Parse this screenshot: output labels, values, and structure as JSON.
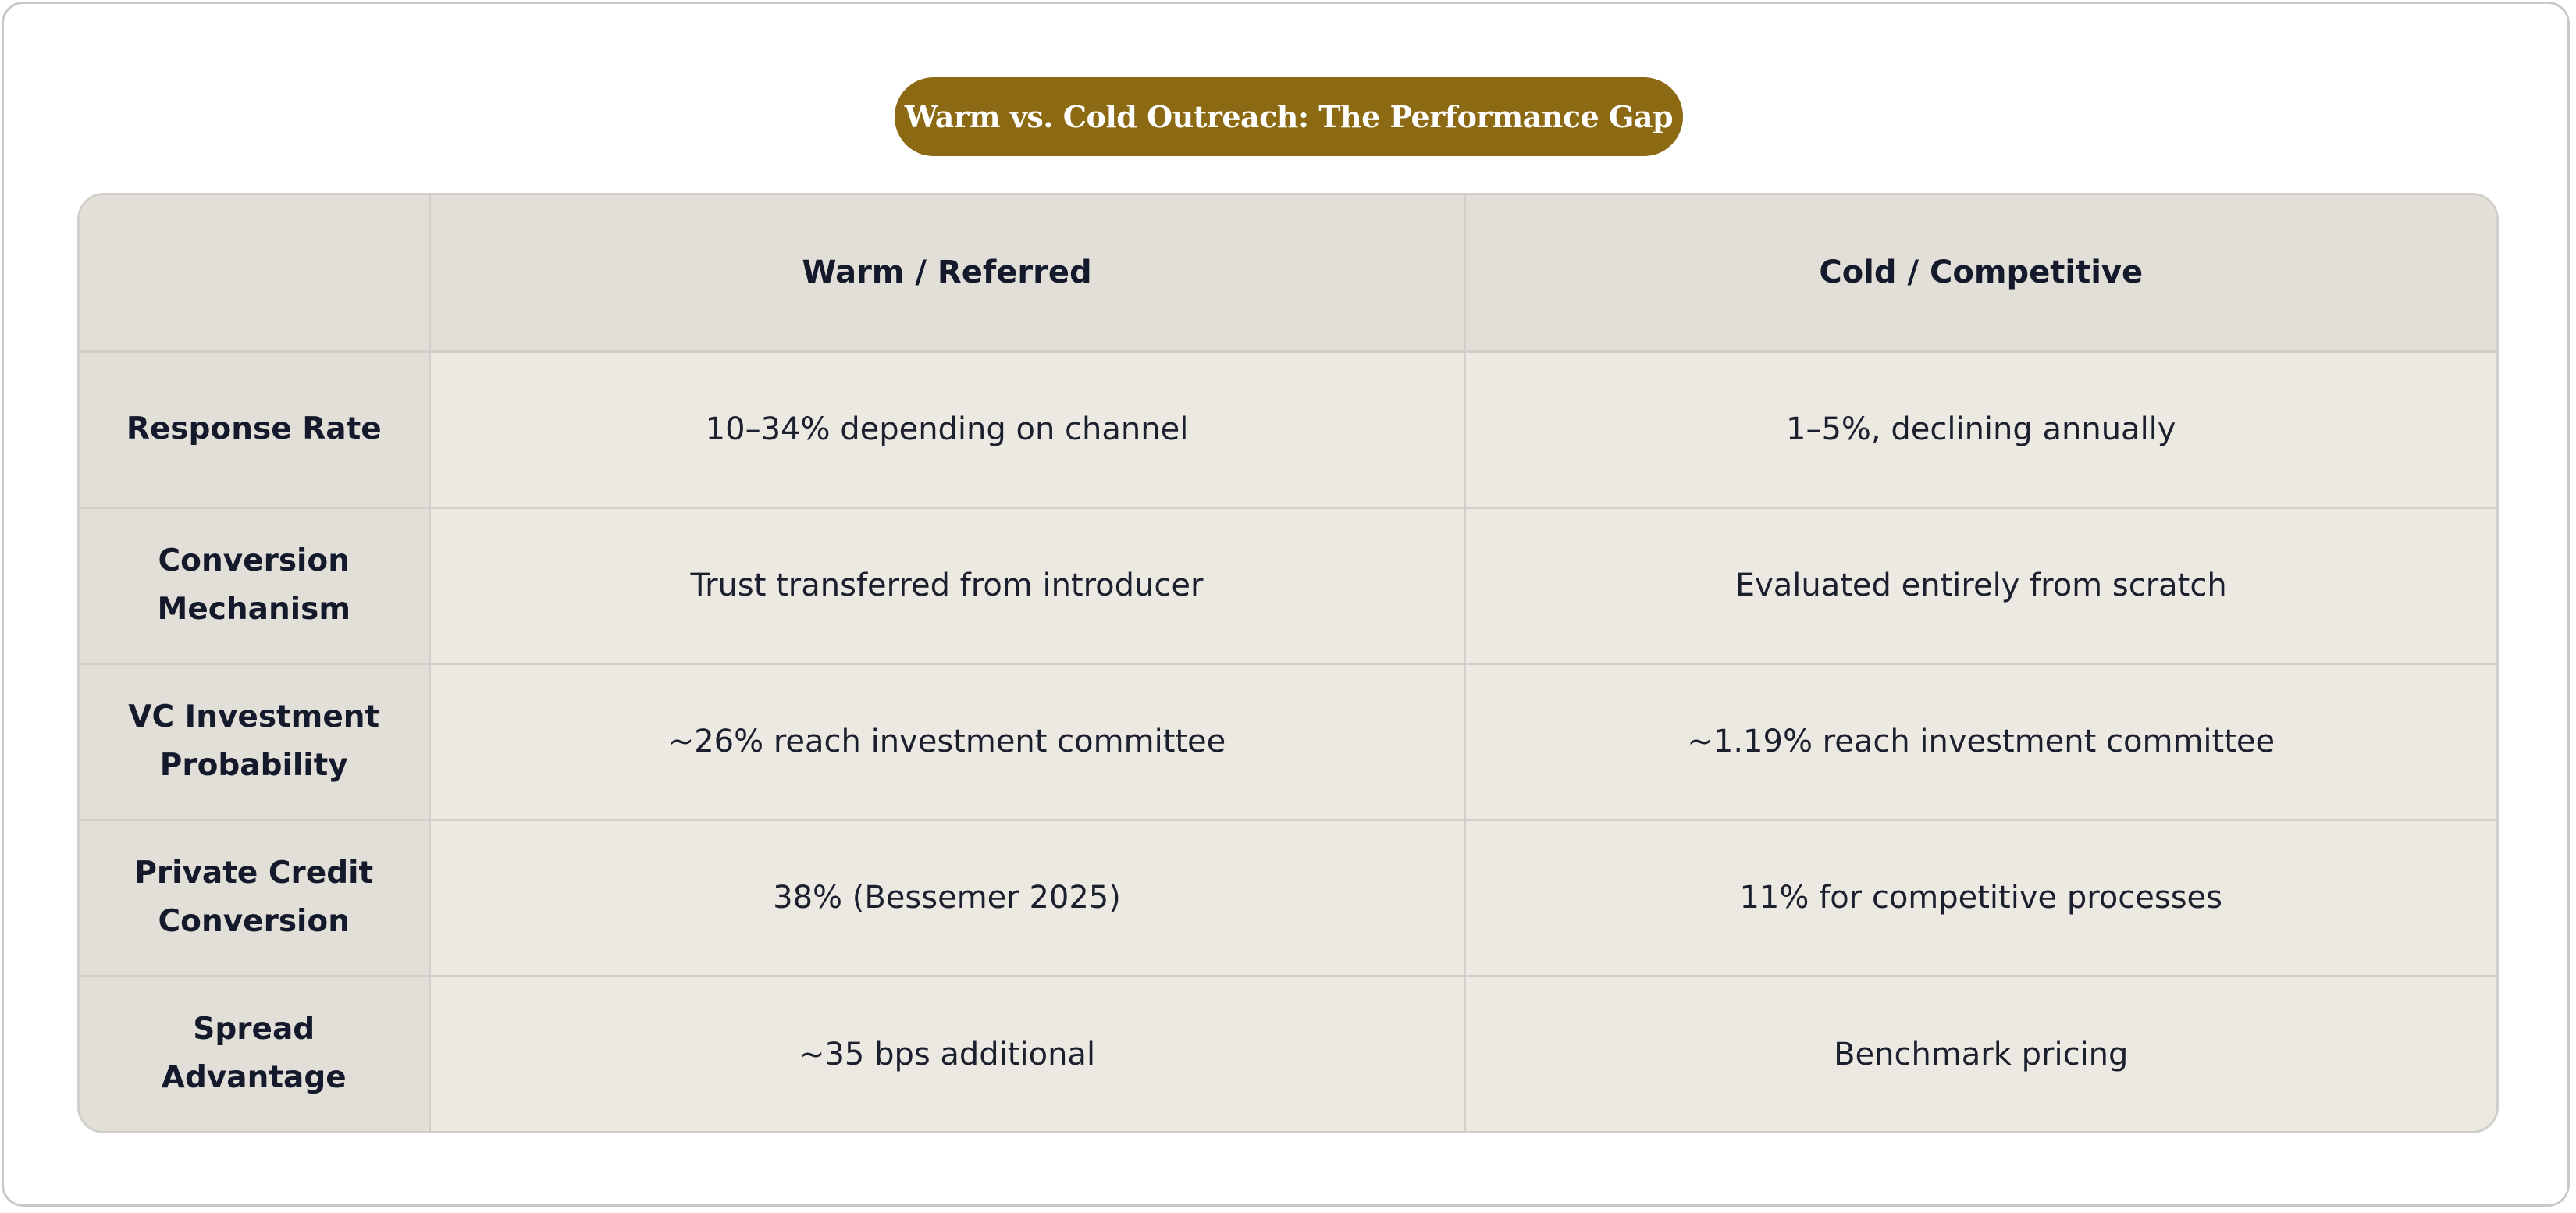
{
  "title": "Warm vs. Cold Outreach: The Performance Gap",
  "colors": {
    "title_background": "#8c6a14",
    "header_background": "#e2dfd9",
    "cell_background": "#ece9e3",
    "border": "#d2cfca",
    "text": "#141a2b"
  },
  "table": {
    "headers": [
      "",
      "Warm / Referred",
      "Cold / Competitive"
    ],
    "rows": [
      {
        "label": "Response Rate",
        "warm": "10–34% depending on channel",
        "cold": "1–5%, declining annually"
      },
      {
        "label": "Conversion Mechanism",
        "warm": "Trust transferred from introducer",
        "cold": "Evaluated entirely from scratch"
      },
      {
        "label": "VC Investment Probability",
        "warm": "~26% reach investment committee",
        "cold": "~1.19% reach investment committee"
      },
      {
        "label": "Private Credit Conversion",
        "warm": "38% (Bessemer 2025)",
        "cold": "11% for competitive processes"
      },
      {
        "label": "Spread Advantage",
        "warm": "~35 bps additional",
        "cold": "Benchmark pricing"
      }
    ]
  }
}
